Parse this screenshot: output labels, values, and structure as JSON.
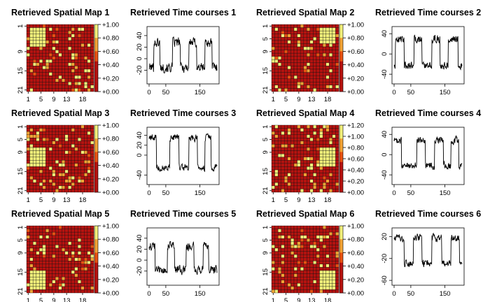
{
  "figure": {
    "colors": {
      "low": "#b5120f",
      "mid": "#e85212",
      "highmid": "#f2a335",
      "high": "#f2f07a",
      "cell_border": "#101010",
      "line": "#000000"
    }
  },
  "chart_data": [
    {
      "type": "heatmap",
      "title": "Retrieved Spatial Map 1",
      "grid_size": 21,
      "row_ticks": [
        "1",
        "9",
        "15",
        "21"
      ],
      "col_ticks": [
        "1",
        "5",
        "9",
        "13",
        "18"
      ],
      "colorbar_ticks": [
        "+0.00",
        "+0.20",
        "+0.40",
        "+0.60",
        "+0.80",
        "+1.00"
      ],
      "colorbar_range": [
        0,
        1.0
      ],
      "hotspot": {
        "rows": [
          1,
          6
        ],
        "cols": [
          1,
          5
        ]
      },
      "noise_seed": 11
    },
    {
      "type": "line",
      "title": "Retrieved Time courses 1",
      "x_ticks": [
        "0",
        "50",
        "150"
      ],
      "x_range": [
        1,
        200
      ],
      "y_ticks": [
        "-20",
        "0",
        "20",
        "40"
      ],
      "y_range": [
        -40,
        52
      ],
      "on_level": 28,
      "off_level": -15,
      "noise": 12,
      "on_periods": [
        [
          15,
          32
        ],
        [
          70,
          92
        ],
        [
          118,
          140
        ],
        [
          165,
          185
        ]
      ],
      "seed": 101
    },
    {
      "type": "heatmap",
      "title": "Retrieved Spatial Map 2",
      "grid_size": 21,
      "row_ticks": [
        "1",
        "5",
        "9",
        "15",
        "21"
      ],
      "col_ticks": [
        "1",
        "5",
        "9",
        "13",
        "18"
      ],
      "colorbar_ticks": [
        "+0.00",
        "+0.20",
        "+0.40",
        "+0.60",
        "+0.80",
        "+1.00"
      ],
      "colorbar_range": [
        0,
        1.0
      ],
      "hotspot": {
        "rows": [
          1,
          5
        ],
        "cols": [
          15,
          19
        ]
      },
      "noise_seed": 23
    },
    {
      "type": "line",
      "title": "Retrieved Time courses 2",
      "x_ticks": [
        "0",
        "50",
        "150"
      ],
      "x_range": [
        1,
        200
      ],
      "y_ticks": [
        "-40",
        "0",
        "40"
      ],
      "y_range": [
        -55,
        50
      ],
      "on_level": 30,
      "off_level": -22,
      "noise": 11,
      "on_periods": [
        [
          5,
          30
        ],
        [
          60,
          82
        ],
        [
          112,
          135
        ],
        [
          160,
          188
        ]
      ],
      "seed": 202
    },
    {
      "type": "heatmap",
      "title": "Retrieved Spatial Map 3",
      "grid_size": 21,
      "row_ticks": [
        "1",
        "5",
        "9",
        "15",
        "21"
      ],
      "col_ticks": [
        "1",
        "5",
        "9",
        "13",
        "18"
      ],
      "colorbar_ticks": [
        "+0.00",
        "+0.20",
        "+0.40",
        "+0.60",
        "+0.80",
        "+1.00"
      ],
      "colorbar_range": [
        0,
        1.0
      ],
      "hotspot": {
        "rows": [
          7,
          12
        ],
        "cols": [
          1,
          5
        ]
      },
      "noise_seed": 37
    },
    {
      "type": "line",
      "title": "Retrieved Time courses 3",
      "x_ticks": [
        "0",
        "50",
        "150"
      ],
      "x_range": [
        1,
        200
      ],
      "y_ticks": [
        "-40",
        "0",
        "20",
        "40"
      ],
      "y_range": [
        -55,
        52
      ],
      "on_level": 35,
      "off_level": -25,
      "noise": 10,
      "on_periods": [
        [
          0,
          22
        ],
        [
          62,
          88
        ],
        [
          118,
          142
        ],
        [
          165,
          182
        ]
      ],
      "seed": 303
    },
    {
      "type": "heatmap",
      "title": "Retrieved Spatial Map 4",
      "grid_size": 21,
      "row_ticks": [
        "1",
        "5",
        "9",
        "15",
        "21"
      ],
      "col_ticks": [
        "1",
        "5",
        "9",
        "13",
        "18"
      ],
      "colorbar_ticks": [
        "+0.00",
        "+0.20",
        "+0.40",
        "+0.60",
        "+0.80",
        "+1.00",
        "+1.20"
      ],
      "colorbar_range": [
        0,
        1.2
      ],
      "hotspot": {
        "rows": [
          7,
          12
        ],
        "cols": [
          15,
          19
        ]
      },
      "noise_seed": 41
    },
    {
      "type": "line",
      "title": "Retrieved Time courses 4",
      "x_ticks": [
        "0",
        "50",
        "150"
      ],
      "x_range": [
        1,
        200
      ],
      "y_ticks": [
        "-40",
        "0",
        "40"
      ],
      "y_range": [
        -55,
        50
      ],
      "on_level": 28,
      "off_level": -22,
      "noise": 10,
      "on_periods": [
        [
          0,
          22
        ],
        [
          68,
          92
        ],
        [
          120,
          145
        ],
        [
          168,
          190
        ]
      ],
      "seed": 404
    },
    {
      "type": "heatmap",
      "title": "Retrieved Spatial Map 5",
      "grid_size": 21,
      "row_ticks": [
        "1",
        "5",
        "9",
        "15",
        "21"
      ],
      "col_ticks": [
        "1",
        "5",
        "9",
        "13",
        "18"
      ],
      "colorbar_ticks": [
        "+0.00",
        "+0.20",
        "+0.40",
        "+0.60",
        "+0.80",
        "+1.00"
      ],
      "colorbar_range": [
        0,
        1.0
      ],
      "hotspot": {
        "rows": [
          14,
          19
        ],
        "cols": [
          1,
          5
        ]
      },
      "noise_seed": 53
    },
    {
      "type": "line",
      "title": "Retrieved Time courses 5",
      "x_ticks": [
        "0",
        "50",
        "150"
      ],
      "x_range": [
        1,
        200
      ],
      "y_ticks": [
        "-20",
        "0",
        "20",
        "40"
      ],
      "y_range": [
        -42,
        55
      ],
      "on_level": 25,
      "off_level": -18,
      "noise": 11,
      "on_periods": [
        [
          0,
          18
        ],
        [
          55,
          75
        ],
        [
          110,
          132
        ],
        [
          160,
          175
        ]
      ],
      "seed": 505
    },
    {
      "type": "heatmap",
      "title": "Retrieved Spatial Map 6",
      "grid_size": 21,
      "row_ticks": [
        "1",
        "5",
        "9",
        "15",
        "21"
      ],
      "col_ticks": [
        "1",
        "5",
        "9",
        "13",
        "18"
      ],
      "colorbar_ticks": [
        "+0.00",
        "+0.20",
        "+0.40",
        "+0.60",
        "+0.80",
        "+1.00"
      ],
      "colorbar_range": [
        0,
        1.0
      ],
      "hotspot": {
        "rows": [
          14,
          19
        ],
        "cols": [
          15,
          19
        ]
      },
      "noise_seed": 67
    },
    {
      "type": "line",
      "title": "Retrieved Time courses 6",
      "x_ticks": [
        "0",
        "50",
        "150"
      ],
      "x_range": [
        1,
        200
      ],
      "y_ticks": [
        "-60",
        "-20",
        "20"
      ],
      "y_range": [
        -65,
        32
      ],
      "on_level": 18,
      "off_level": -28,
      "noise": 10,
      "on_periods": [
        [
          0,
          30
        ],
        [
          58,
          82
        ],
        [
          112,
          140
        ],
        [
          168,
          192
        ]
      ],
      "seed": 606
    }
  ]
}
